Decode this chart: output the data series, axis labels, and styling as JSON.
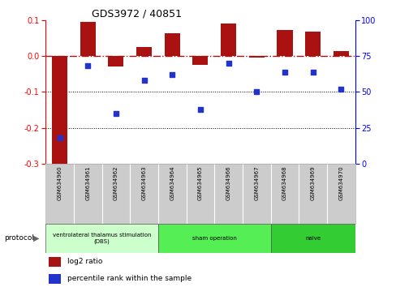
{
  "title": "GDS3972 / 40851",
  "samples": [
    "GSM634960",
    "GSM634961",
    "GSM634962",
    "GSM634963",
    "GSM634964",
    "GSM634965",
    "GSM634966",
    "GSM634967",
    "GSM634968",
    "GSM634969",
    "GSM634970"
  ],
  "log2_ratio": [
    -0.3,
    0.095,
    -0.03,
    0.025,
    0.063,
    -0.025,
    0.09,
    -0.005,
    0.072,
    0.068,
    0.013
  ],
  "percentile_rank": [
    18,
    68,
    35,
    58,
    62,
    38,
    70,
    50,
    64,
    64,
    52
  ],
  "bar_color": "#aa1111",
  "dot_color": "#2233cc",
  "ylim_left": [
    -0.3,
    0.1
  ],
  "ylim_right": [
    0,
    100
  ],
  "yticks_left": [
    -0.3,
    -0.2,
    -0.1,
    0.0,
    0.1
  ],
  "yticks_right": [
    0,
    25,
    50,
    75,
    100
  ],
  "dotted_lines": [
    -0.1,
    -0.2
  ],
  "protocol_groups": [
    {
      "label": "ventrolateral thalamus stimulation\n(DBS)",
      "start": 0,
      "end": 4,
      "color": "#ccffcc"
    },
    {
      "label": "sham operation",
      "start": 4,
      "end": 8,
      "color": "#55ee55"
    },
    {
      "label": "naive",
      "start": 8,
      "end": 11,
      "color": "#33cc33"
    }
  ],
  "protocol_label": "protocol",
  "legend_items": [
    {
      "label": "log2 ratio",
      "color": "#aa1111"
    },
    {
      "label": "percentile rank within the sample",
      "color": "#2233cc"
    }
  ],
  "bar_width": 0.55,
  "background_color": "#ffffff",
  "sample_box_color": "#cccccc",
  "sample_box_border": "#aaaaaa"
}
